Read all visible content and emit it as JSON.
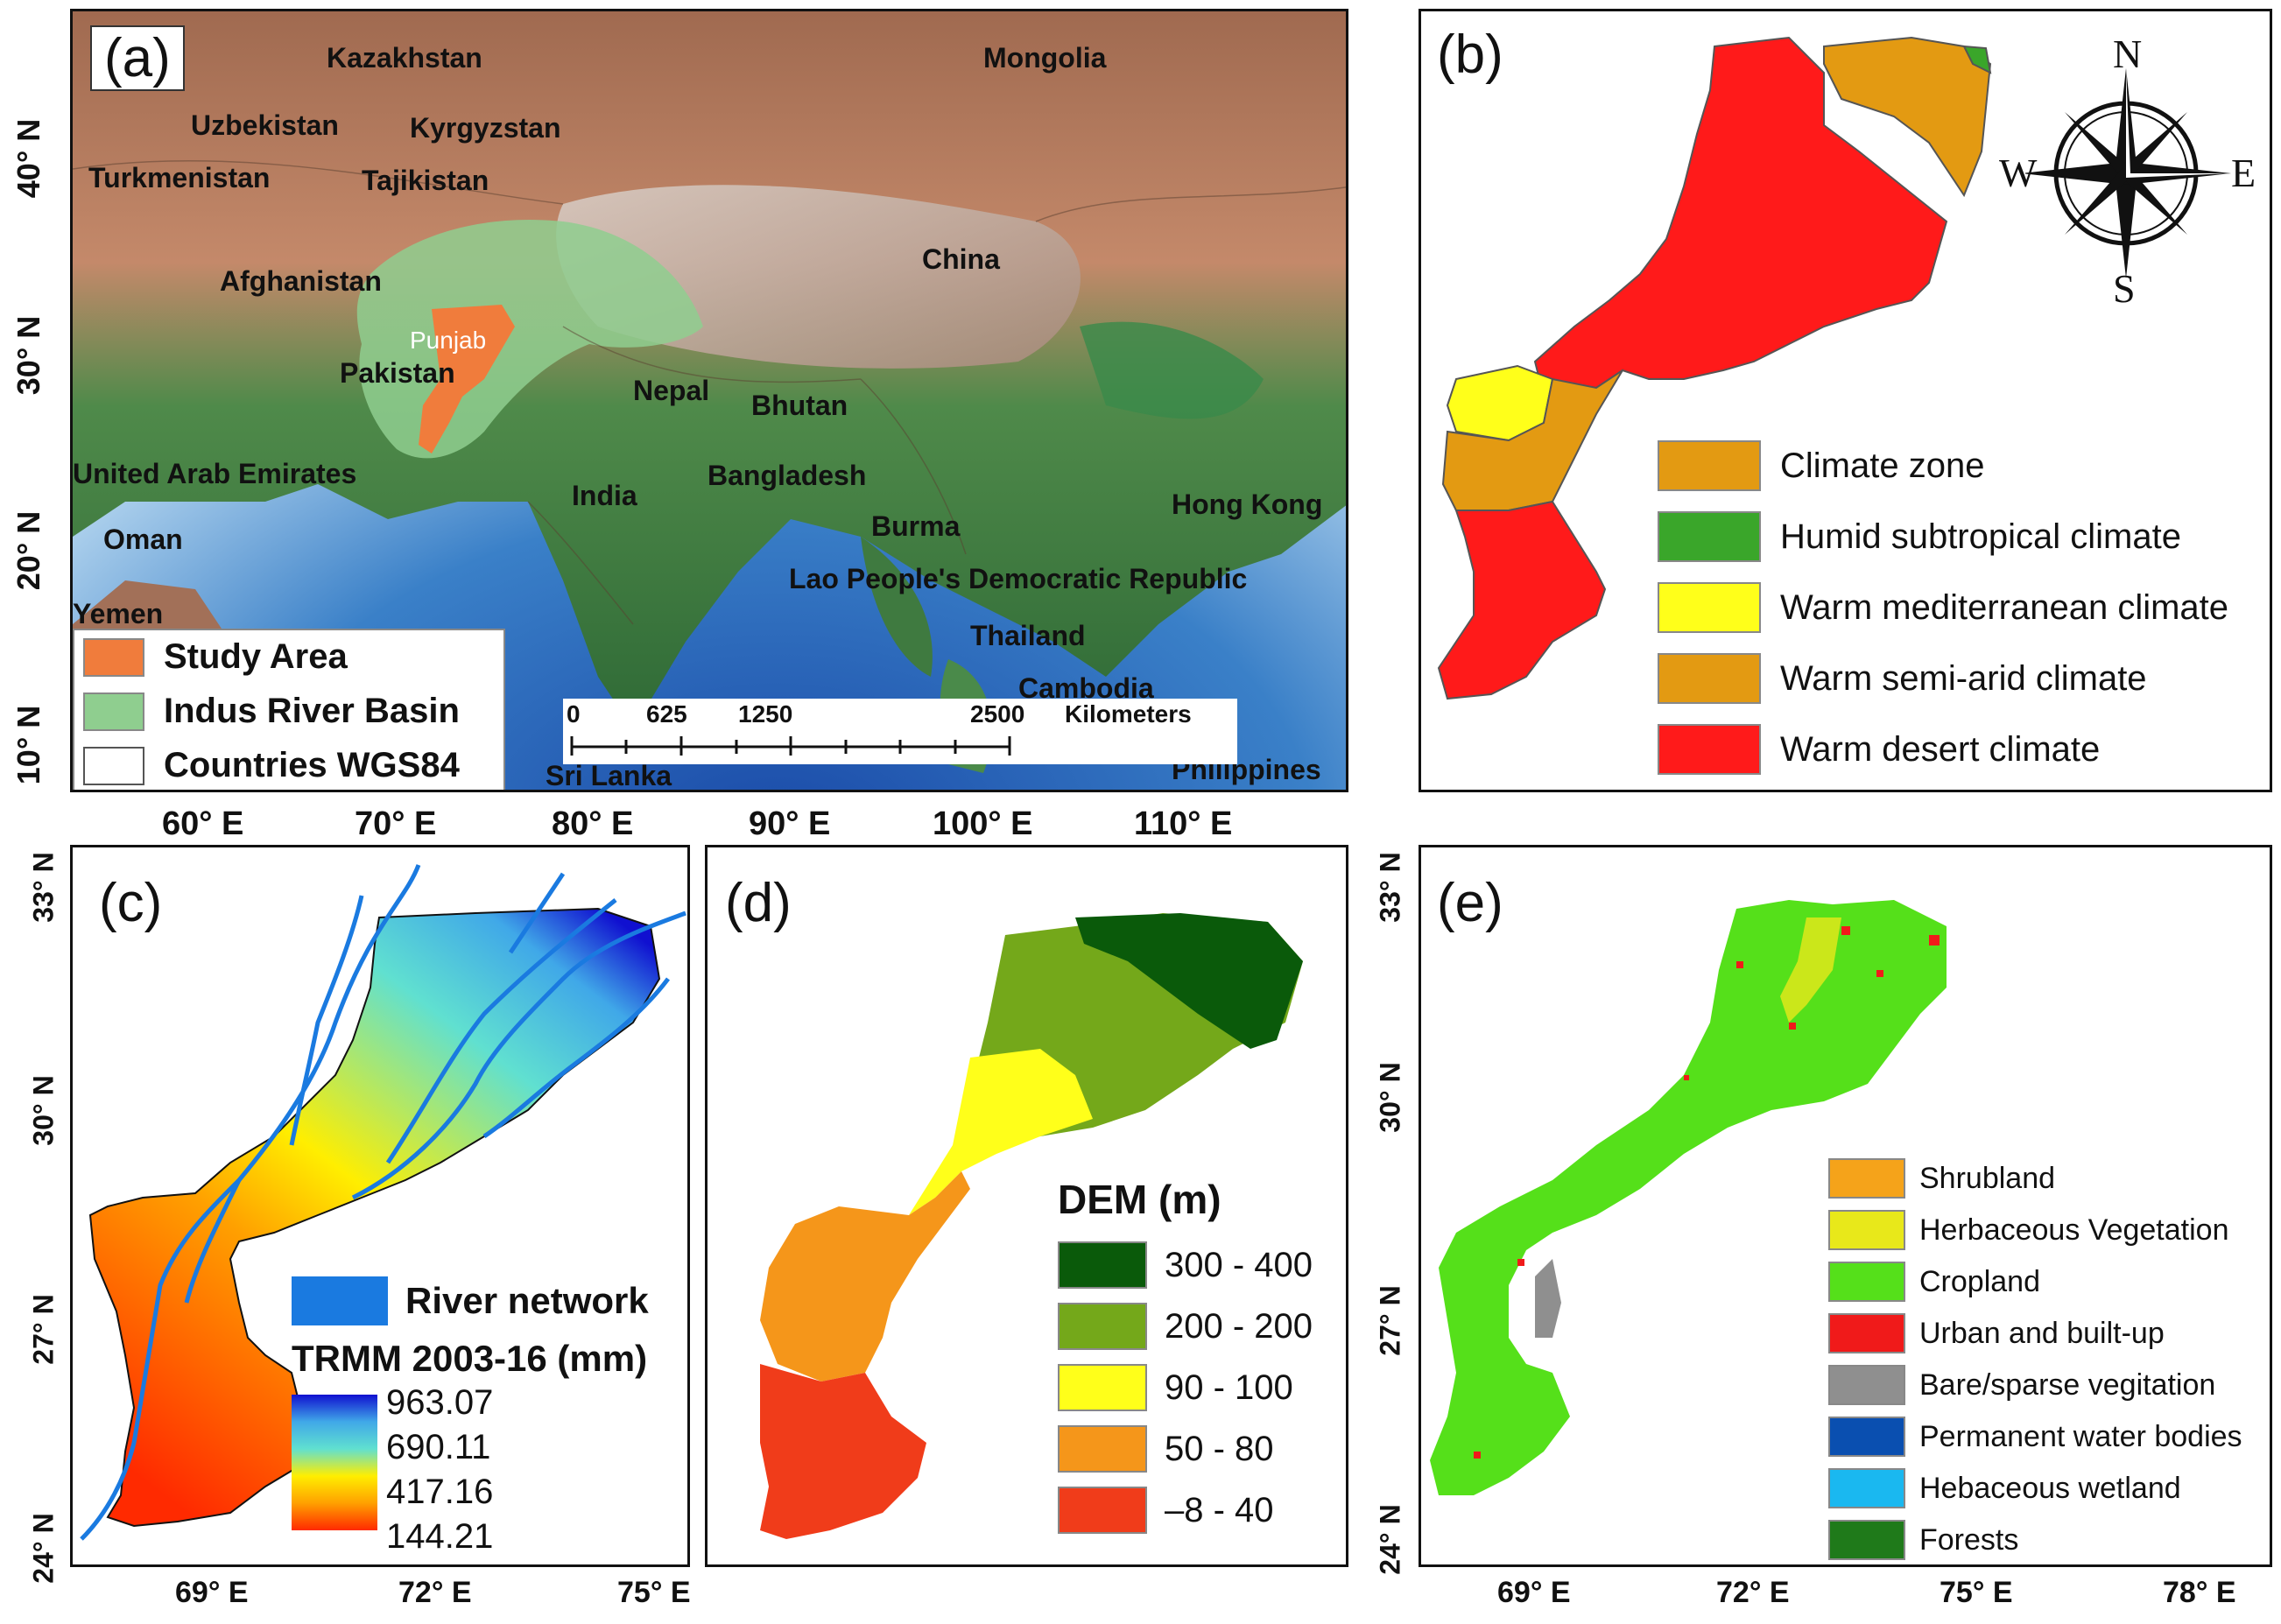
{
  "panels": {
    "a": {
      "label": "(a)",
      "countries": [
        "Kazakhstan",
        "Mongolia",
        "Uzbekistan",
        "Kyrgyzstan",
        "Turkmenistan",
        "Tajikistan",
        "Afghanistan",
        "China",
        "Pakistan",
        "Nepal",
        "Bhutan",
        "United Arab Emirates",
        "India",
        "Bangladesh",
        "Hong Kong",
        "Oman",
        "Burma",
        "Lao People's Democratic Republic",
        "Yemen",
        "Thailand",
        "Cambodia",
        "Sri Lanka",
        "Philippines"
      ],
      "region_label": "Punjab",
      "legend": [
        {
          "label": "Study Area",
          "color": "#f07c3c"
        },
        {
          "label": "Indus River Basin",
          "color": "#8fce8f"
        },
        {
          "label": "Countries WGS84",
          "color": "#ffffff"
        }
      ],
      "scalebar": {
        "ticks": [
          "0",
          "625",
          "1250",
          "2500"
        ],
        "unit": "Kilometers"
      },
      "lat_ticks": [
        "40° N",
        "30° N",
        "20° N",
        "10° N"
      ],
      "lon_ticks": [
        "60° E",
        "70° E",
        "80° E",
        "90° E",
        "100° E",
        "110° E"
      ]
    },
    "b": {
      "label": "(b)",
      "compass": {
        "n": "N",
        "s": "S",
        "e": "E",
        "w": "W"
      },
      "legend": [
        {
          "label": "Climate zone",
          "color": "#e39a12"
        },
        {
          "label": "Humid subtropical climate",
          "color": "#3aa62a"
        },
        {
          "label": "Warm mediterranean climate",
          "color": "#ffff1a"
        },
        {
          "label": "Warm semi-arid climate",
          "color": "#e39a12"
        },
        {
          "label": "Warm desert climate",
          "color": "#ff1a1a"
        }
      ]
    },
    "c": {
      "label": "(c)",
      "river_label": "River network",
      "river_color": "#1a7ae0",
      "colorbar_title": "TRMM 2003-16 (mm)",
      "colorbar_values": [
        "963.07",
        "690.11",
        "417.16",
        "144.21"
      ],
      "lat_ticks": [
        "33° N",
        "30° N",
        "27° N",
        "24° N"
      ],
      "lon_ticks": [
        "69° E",
        "72° E",
        "75° E"
      ]
    },
    "d": {
      "label": "(d)",
      "legend_title": "DEM (m)",
      "legend": [
        {
          "label": "300 - 400",
          "color": "#0a5a0a"
        },
        {
          "label": "200 - 200",
          "color": "#74a81a"
        },
        {
          "label": "90 - 100",
          "color": "#ffff1a"
        },
        {
          "label": "50 - 80",
          "color": "#f5961a"
        },
        {
          "label": "–8 - 40",
          "color": "#f03c1a"
        }
      ]
    },
    "e": {
      "label": "(e)",
      "legend": [
        {
          "label": "Shrubland",
          "color": "#f5a31a"
        },
        {
          "label": "Herbaceous Vegetation",
          "color": "#e8e81a"
        },
        {
          "label": "Cropland",
          "color": "#55e01a"
        },
        {
          "label": "Urban and built-up",
          "color": "#f01a1a"
        },
        {
          "label": "Bare/sparse vegitation",
          "color": "#8f8f8f"
        },
        {
          "label": "Permanent water bodies",
          "color": "#0a4fb0"
        },
        {
          "label": "Hebaceous wetland",
          "color": "#1ab8f0"
        },
        {
          "label": "Forests",
          "color": "#1f7a1a"
        }
      ],
      "lat_ticks": [
        "33° N",
        "30° N",
        "27° N",
        "24° N"
      ],
      "lon_ticks": [
        "69° E",
        "72° E",
        "75° E",
        "78° E"
      ]
    }
  }
}
